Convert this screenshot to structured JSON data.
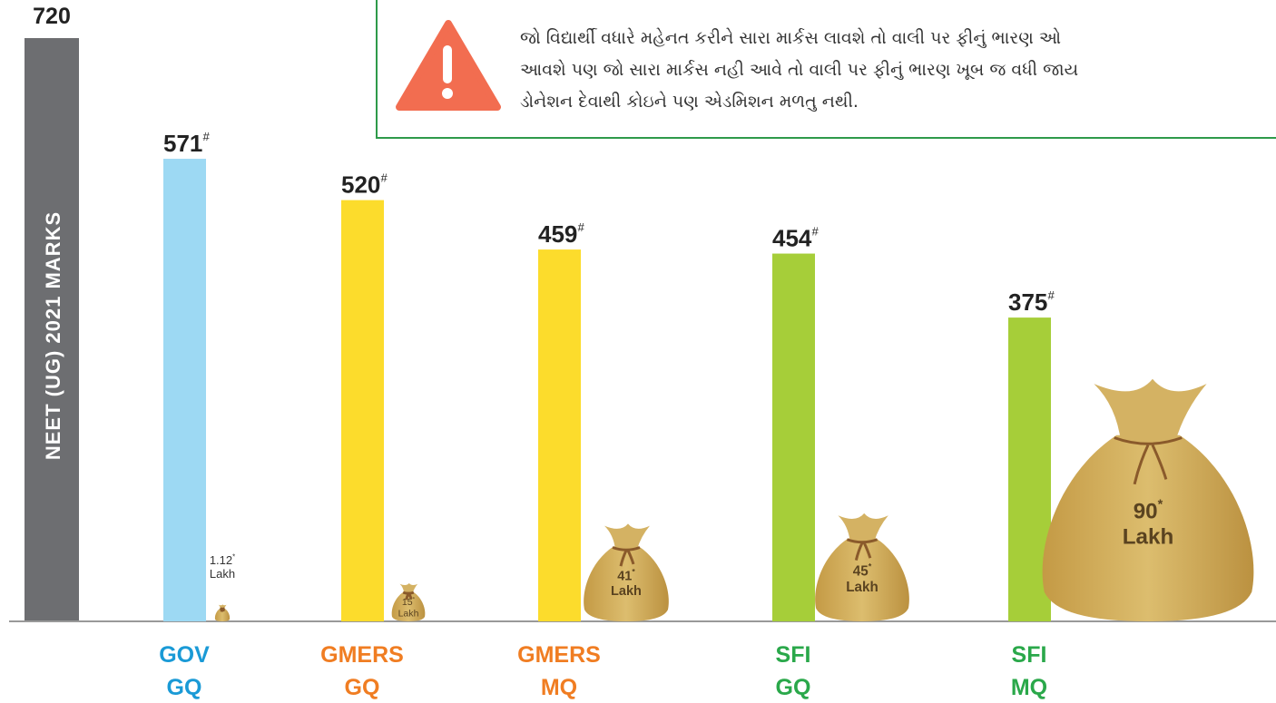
{
  "notice": {
    "lines": [
      "જો વિદ્યાર્થી વધારે મહેનત કરીને સારા માર્કસ લાવશે તો વાલી પર ફીનું ભારણ ઓ",
      "આવશે પણ જો સારા માર્કસ નહી આવે તો વાલી પર ફીનું ભારણ ખૂબ જ વધી જાય",
      "ડોનેશન દેવાથી કોઇને પણ એડમિશન મળતુ નથી."
    ]
  },
  "chart_data": {
    "type": "bar",
    "y_label": "NEET (UG) 2021 MARKS",
    "ylim": [
      0,
      720
    ],
    "yticks": [
      720
    ],
    "categories": [
      [
        "GOV",
        "GQ"
      ],
      [
        "GMERS",
        "GQ"
      ],
      [
        "GMERS",
        "MQ"
      ],
      [
        "SFI",
        "GQ"
      ],
      [
        "SFI",
        "MQ"
      ]
    ],
    "values": [
      571,
      520,
      459,
      454,
      375
    ],
    "value_marker": "#",
    "colors": [
      "#9dd9f3",
      "#fcdc2c",
      "#fcdc2c",
      "#a6ce39",
      "#a6ce39"
    ],
    "label_colors": [
      "#1a9ad6",
      "#f07d22",
      "#f07d22",
      "#2aa84a",
      "#2aa84a"
    ],
    "fees": [
      1.12,
      15,
      41,
      45,
      90
    ],
    "fee_unit": "Lakh",
    "fee_marker": "*"
  }
}
